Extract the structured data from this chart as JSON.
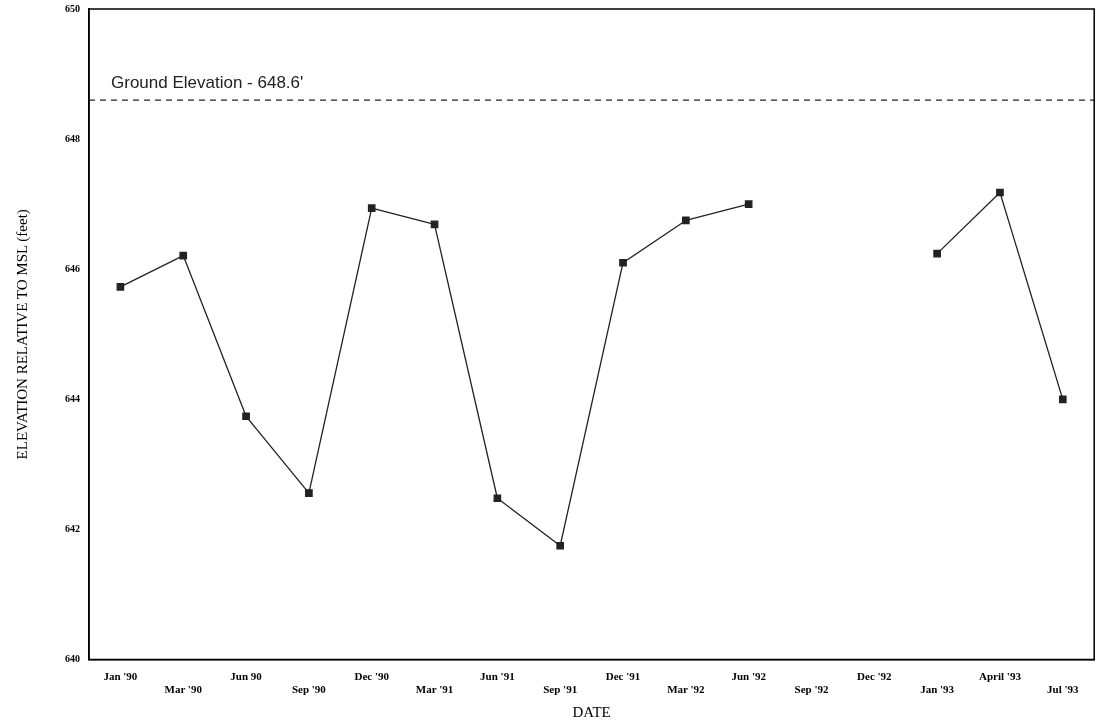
{
  "chart_data": {
    "type": "line",
    "xlabel": "DATE",
    "ylabel": "ELEVATION RELATIVE TO MSL (feet)",
    "categories": [
      "Jan '90",
      "Mar '90",
      "Jun 90",
      "Sep '90",
      "Dec '90",
      "Mar '91",
      "Jun '91",
      "Sep '91",
      "Dec '91",
      "Mar '92",
      "Jun '92",
      "Sep '92",
      "Dec '92",
      "Jan '93",
      "April '93",
      "Jul '93"
    ],
    "series": [
      {
        "color": "#222222",
        "values": [
          645.73,
          646.21,
          643.74,
          642.56,
          646.94,
          646.69,
          642.48,
          641.75,
          646.1,
          646.75,
          647.0,
          null,
          null,
          646.24,
          647.18,
          644.0
        ]
      }
    ],
    "ylim": [
      640,
      650
    ],
    "yticks": [
      640,
      642,
      644,
      646,
      648,
      650
    ],
    "ref_lines": [
      {
        "axis": "y",
        "value": 648.6,
        "label": "Ground Elevation - 648.6'",
        "color": "#222222",
        "line_style": "dashed"
      }
    ],
    "grid": false,
    "legend": false,
    "marker": "square",
    "line_style": "solid"
  }
}
